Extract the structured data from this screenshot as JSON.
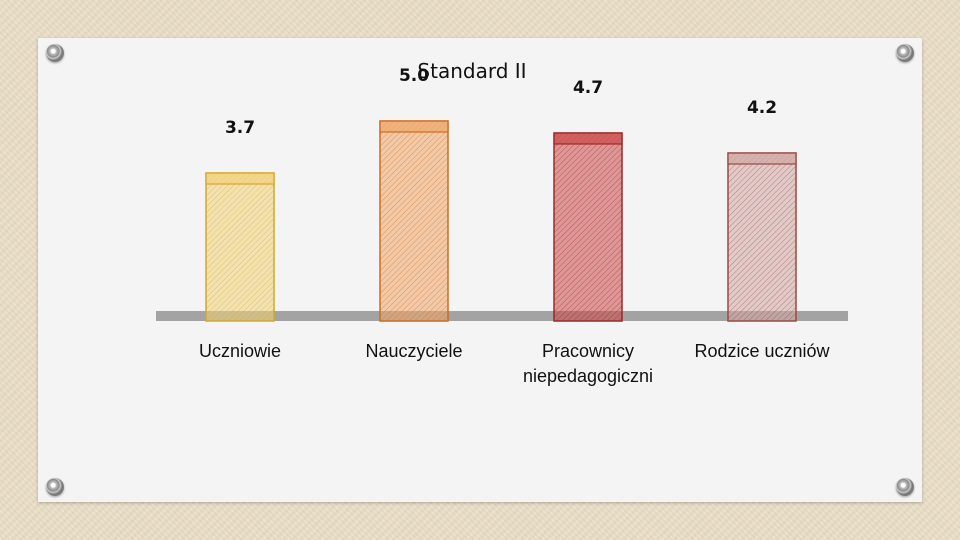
{
  "chart_data": {
    "type": "bar",
    "title": "Standard II",
    "categories": [
      [
        "Uczniowie"
      ],
      [
        "Nauczyciele"
      ],
      [
        "Pracownicy",
        "niepedagogiczni"
      ],
      [
        "Rodzice uczniów"
      ]
    ],
    "values": [
      3.7,
      5.0,
      4.7,
      4.2
    ],
    "value_labels": [
      "3.7",
      "5.0",
      "4.7",
      "4.2"
    ],
    "colors": [
      "#f2d27a",
      "#f0a86a",
      "#cc4a4a",
      "#d2a8a4"
    ],
    "edge_colors": [
      "#d4a72c",
      "#cf6a24",
      "#9e2828",
      "#9a4a44"
    ],
    "grid": false,
    "legend": "none"
  }
}
